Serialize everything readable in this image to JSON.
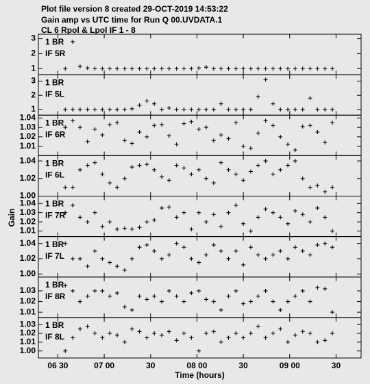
{
  "header": {
    "lines": [
      "Plot file version 8  created 29-OCT-2019 14:53:22",
      "Gain amp vs UTC time for Run Q 00.UVDATA.1",
      "CL 6  Rpol & Lpol  IF 1 - 8"
    ],
    "y_label": "Gain"
  },
  "chart_data": [
    {
      "type": "scatter",
      "annotations": [
        "1 BR",
        "IF 5R"
      ],
      "x": [
        6.58,
        6.66,
        6.74,
        6.82,
        6.9,
        6.98,
        7.06,
        7.14,
        7.22,
        7.3,
        7.38,
        7.46,
        7.54,
        7.62,
        7.7,
        7.78,
        7.86,
        7.94,
        8.02,
        8.1,
        8.18,
        8.26,
        8.34,
        8.42,
        8.5,
        8.58,
        8.66,
        8.74,
        8.82,
        8.9,
        8.98,
        9.06,
        9.14,
        9.22,
        9.3,
        9.38,
        9.46
      ],
      "values": [
        1.0,
        2.8,
        1.15,
        1.05,
        1.0,
        1.0,
        1.0,
        1.0,
        1.0,
        1.0,
        1.0,
        1.0,
        1.0,
        1.0,
        1.0,
        1.0,
        1.0,
        1.0,
        1.05,
        1.1,
        1.0,
        1.0,
        1.0,
        1.0,
        1.0,
        1.0,
        1.0,
        1.0,
        1.0,
        1.0,
        1.0,
        1.0,
        1.0,
        1.0,
        1.0,
        1.0,
        1.0
      ],
      "ylim": [
        0.6,
        3.3
      ],
      "yticks": [
        1,
        2,
        3
      ]
    },
    {
      "type": "scatter",
      "annotations": [
        "1 BR",
        "IF 5L"
      ],
      "x": [
        6.58,
        6.66,
        6.74,
        6.82,
        6.9,
        6.98,
        7.06,
        7.14,
        7.22,
        7.3,
        7.38,
        7.46,
        7.54,
        7.62,
        7.7,
        7.78,
        7.86,
        7.94,
        8.02,
        8.1,
        8.18,
        8.26,
        8.34,
        8.42,
        8.5,
        8.58,
        8.66,
        8.74,
        8.82,
        8.9,
        8.98,
        9.06,
        9.14,
        9.22,
        9.3,
        9.38,
        9.46
      ],
      "values": [
        1.0,
        1.0,
        1.0,
        1.0,
        1.0,
        1.0,
        1.0,
        1.0,
        1.0,
        1.05,
        1.3,
        1.6,
        1.4,
        1.0,
        1.1,
        1.0,
        1.0,
        1.0,
        1.0,
        1.0,
        1.0,
        1.4,
        1.0,
        1.0,
        1.0,
        1.0,
        1.9,
        3.1,
        1.4,
        1.0,
        1.0,
        1.0,
        1.0,
        1.8,
        1.0,
        1.0,
        1.0
      ],
      "ylim": [
        0.6,
        3.45
      ],
      "yticks": [
        1,
        2,
        3
      ]
    },
    {
      "type": "scatter",
      "annotations": [
        "1 BR",
        "IF 6R"
      ],
      "x": [
        6.58,
        6.66,
        6.74,
        6.82,
        6.9,
        6.98,
        7.06,
        7.14,
        7.22,
        7.3,
        7.38,
        7.46,
        7.54,
        7.62,
        7.7,
        7.78,
        7.86,
        7.94,
        8.02,
        8.1,
        8.18,
        8.26,
        8.34,
        8.42,
        8.5,
        8.58,
        8.66,
        8.74,
        8.82,
        8.9,
        8.98,
        9.06,
        9.14,
        9.22,
        9.3,
        9.38,
        9.46
      ],
      "values": [
        1.03,
        1.037,
        1.03,
        1.015,
        1.028,
        1.022,
        1.033,
        1.035,
        1.016,
        1.013,
        1.025,
        1.02,
        1.032,
        1.033,
        1.021,
        1.012,
        1.034,
        1.036,
        1.028,
        1.03,
        1.016,
        1.022,
        1.018,
        1.035,
        1.01,
        1.008,
        1.024,
        1.037,
        1.032,
        1.02,
        1.012,
        1.006,
        1.031,
        1.032,
        1.025,
        1.014,
        1.035
      ],
      "ylim": [
        1.0,
        1.043
      ],
      "yticks": [
        1.01,
        1.02,
        1.03,
        1.04
      ]
    },
    {
      "type": "scatter",
      "annotations": [
        "1 BR",
        "IF 6L"
      ],
      "x": [
        6.58,
        6.66,
        6.74,
        6.82,
        6.9,
        6.98,
        7.06,
        7.14,
        7.22,
        7.3,
        7.38,
        7.46,
        7.54,
        7.62,
        7.7,
        7.78,
        7.86,
        7.94,
        8.02,
        8.1,
        8.18,
        8.26,
        8.34,
        8.42,
        8.5,
        8.58,
        8.66,
        8.74,
        8.82,
        8.9,
        8.98,
        9.06,
        9.14,
        9.22,
        9.3,
        9.38,
        9.46
      ],
      "values": [
        1.01,
        1.01,
        1.03,
        1.035,
        1.038,
        1.025,
        1.015,
        1.01,
        1.02,
        1.033,
        1.035,
        1.036,
        1.03,
        1.022,
        1.018,
        1.035,
        1.032,
        1.025,
        1.03,
        1.02,
        1.015,
        1.038,
        1.03,
        1.025,
        1.018,
        1.028,
        1.035,
        1.04,
        1.025,
        1.03,
        1.035,
        1.04,
        1.02,
        1.01,
        1.012,
        1.005,
        1.01
      ],
      "ylim": [
        1.0,
        1.046
      ],
      "yticks": [
        {
          "value": 1.0,
          "label": "1.00"
        },
        1.02,
        1.04
      ]
    },
    {
      "type": "scatter",
      "annotations": [
        "1 BR",
        "IF 7R"
      ],
      "x": [
        6.58,
        6.66,
        6.74,
        6.82,
        6.9,
        6.98,
        7.06,
        7.14,
        7.22,
        7.3,
        7.38,
        7.46,
        7.54,
        7.62,
        7.7,
        7.78,
        7.86,
        7.94,
        8.02,
        8.1,
        8.18,
        8.26,
        8.34,
        8.42,
        8.5,
        8.58,
        8.66,
        8.74,
        8.82,
        8.9,
        8.98,
        9.06,
        9.14,
        9.22,
        9.3,
        9.38,
        9.46
      ],
      "values": [
        1.03,
        1.038,
        1.025,
        1.02,
        1.03,
        1.015,
        1.02,
        1.012,
        1.013,
        1.012,
        1.014,
        1.02,
        1.022,
        1.035,
        1.036,
        1.025,
        1.03,
        1.012,
        1.03,
        1.02,
        1.028,
        1.015,
        1.03,
        1.038,
        1.018,
        1.01,
        1.025,
        1.034,
        1.03,
        1.025,
        1.018,
        1.032,
        1.028,
        1.02,
        1.035,
        1.025,
        1.01
      ],
      "ylim": [
        1.004,
        1.048
      ],
      "yticks": [
        1.01,
        1.02,
        1.03,
        1.04
      ]
    },
    {
      "type": "scatter",
      "annotations": [
        "1 BR",
        "IF 7L"
      ],
      "x": [
        6.58,
        6.66,
        6.74,
        6.82,
        6.9,
        6.98,
        7.06,
        7.14,
        7.22,
        7.3,
        7.38,
        7.46,
        7.54,
        7.62,
        7.7,
        7.78,
        7.86,
        7.94,
        8.02,
        8.1,
        8.18,
        8.26,
        8.34,
        8.42,
        8.5,
        8.58,
        8.66,
        8.74,
        8.82,
        8.9,
        8.98,
        9.06,
        9.14,
        9.22,
        9.3,
        9.38,
        9.46
      ],
      "values": [
        1.04,
        1.02,
        1.02,
        1.01,
        1.03,
        1.02,
        1.015,
        1.01,
        1.005,
        1.02,
        1.035,
        1.038,
        1.03,
        1.02,
        1.025,
        1.04,
        1.035,
        1.02,
        1.015,
        1.025,
        1.038,
        1.03,
        1.02,
        1.03,
        1.012,
        1.035,
        1.025,
        1.02,
        1.025,
        1.03,
        1.02,
        1.035,
        1.03,
        1.025,
        1.038,
        1.04,
        1.035
      ],
      "ylim": [
        0.996,
        1.049
      ],
      "yticks": [
        {
          "value": 1.0,
          "label": "1.00"
        },
        1.02,
        1.04
      ]
    },
    {
      "type": "scatter",
      "annotations": [
        "1 BR",
        "IF 8R"
      ],
      "x": [
        6.58,
        6.66,
        6.74,
        6.82,
        6.9,
        6.98,
        7.06,
        7.14,
        7.22,
        7.3,
        7.38,
        7.46,
        7.54,
        7.62,
        7.7,
        7.78,
        7.86,
        7.94,
        8.02,
        8.1,
        8.18,
        8.26,
        8.34,
        8.42,
        8.5,
        8.58,
        8.66,
        8.74,
        8.82,
        8.9,
        8.98,
        9.06,
        9.14,
        9.22,
        9.3,
        9.38,
        9.46
      ],
      "values": [
        1.035,
        1.03,
        1.02,
        1.025,
        1.03,
        1.03,
        1.025,
        1.028,
        1.015,
        1.012,
        1.025,
        1.022,
        1.025,
        1.02,
        1.03,
        1.025,
        1.02,
        1.028,
        1.03,
        1.022,
        1.02,
        1.012,
        1.025,
        1.03,
        1.018,
        1.02,
        1.025,
        1.03,
        1.02,
        1.012,
        1.02,
        1.025,
        1.03,
        1.02,
        1.033,
        1.032,
        1.01
      ],
      "ylim": [
        1.005,
        1.043
      ],
      "yticks": [
        1.01,
        1.02,
        1.03
      ]
    },
    {
      "type": "scatter",
      "annotations": [
        "1 BR",
        "IF 8L"
      ],
      "x": [
        6.58,
        6.66,
        6.74,
        6.82,
        6.9,
        6.98,
        7.06,
        7.14,
        7.22,
        7.3,
        7.38,
        7.46,
        7.54,
        7.62,
        7.7,
        7.78,
        7.86,
        7.94,
        8.02,
        8.1,
        8.18,
        8.26,
        8.34,
        8.42,
        8.5,
        8.58,
        8.66,
        8.74,
        8.82,
        8.9,
        8.98,
        9.06,
        9.14,
        9.22,
        9.3,
        9.38,
        9.46
      ],
      "values": [
        1.0,
        1.015,
        1.025,
        1.028,
        1.02,
        1.015,
        1.02,
        1.018,
        1.01,
        1.025,
        1.022,
        1.015,
        1.02,
        1.018,
        1.022,
        1.012,
        1.02,
        1.015,
        1.0,
        1.02,
        1.022,
        1.01,
        1.015,
        1.02,
        1.015,
        1.02,
        1.028,
        1.015,
        1.02,
        1.025,
        1.01,
        1.018,
        1.022,
        1.02,
        1.01,
        1.012,
        1.02
      ],
      "ylim": [
        0.992,
        1.038
      ],
      "yticks": [
        {
          "value": 1.0,
          "label": "1.00"
        },
        1.01,
        1.02,
        1.03
      ],
      "xlim": [
        6.29,
        9.77
      ],
      "xticks": [
        {
          "value": 6.5,
          "label": "06 30"
        },
        {
          "value": 7.0,
          "label": "07 00"
        },
        {
          "value": 7.5,
          "label": "30"
        },
        {
          "value": 8.0,
          "label": "08 00"
        },
        {
          "value": 8.5,
          "label": "30"
        },
        {
          "value": 9.0,
          "label": "09 00"
        },
        {
          "value": 9.5,
          "label": "30"
        }
      ],
      "xlabel": "Time (hours)"
    }
  ]
}
